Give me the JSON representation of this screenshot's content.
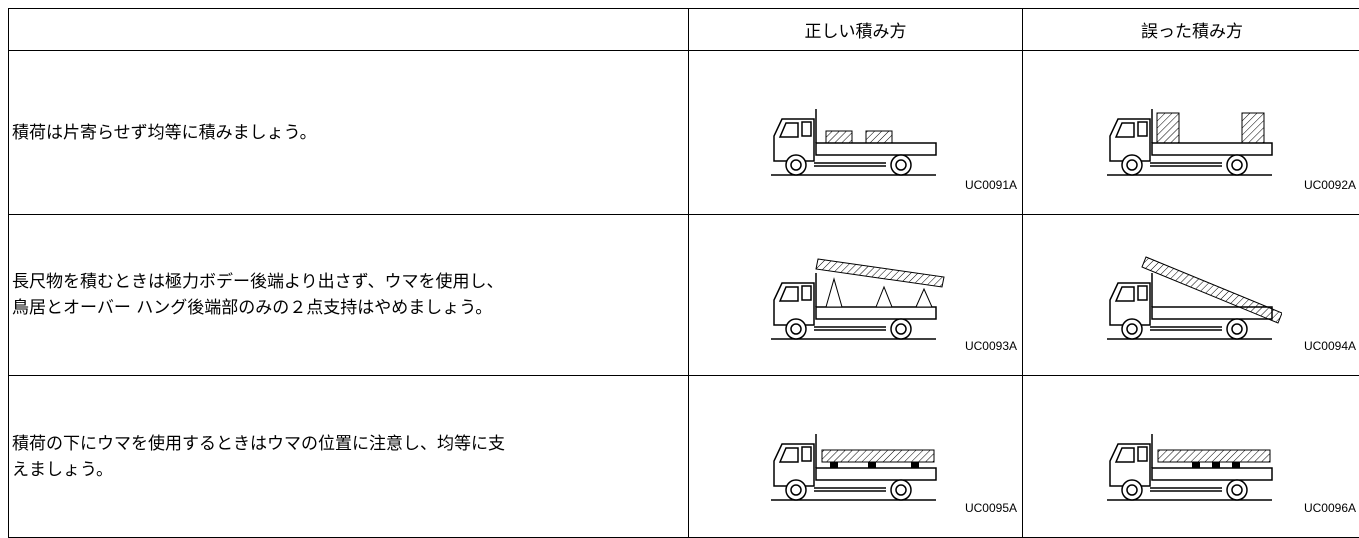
{
  "table": {
    "header": {
      "correct": "正しい積み方",
      "wrong": "誤った積み方"
    },
    "rows": [
      {
        "lines": [
          "積荷は片寄らせず均等に積みましょう。"
        ],
        "correct_code": "UC0091A",
        "wrong_code": "UC0092A"
      },
      {
        "lines": [
          "長尺物を積むときは極力ボデー後端より出さず、ウマを使用し、",
          "鳥居とオーバー ハング後端部のみの２点支持はやめましょう。"
        ],
        "correct_code": "UC0093A",
        "wrong_code": "UC0094A"
      },
      {
        "lines": [
          "積荷の下にウマを使用するときはウマの位置に注意し、均等に支",
          "えましょう。"
        ],
        "correct_code": "UC0095A",
        "wrong_code": "UC0096A"
      }
    ]
  }
}
